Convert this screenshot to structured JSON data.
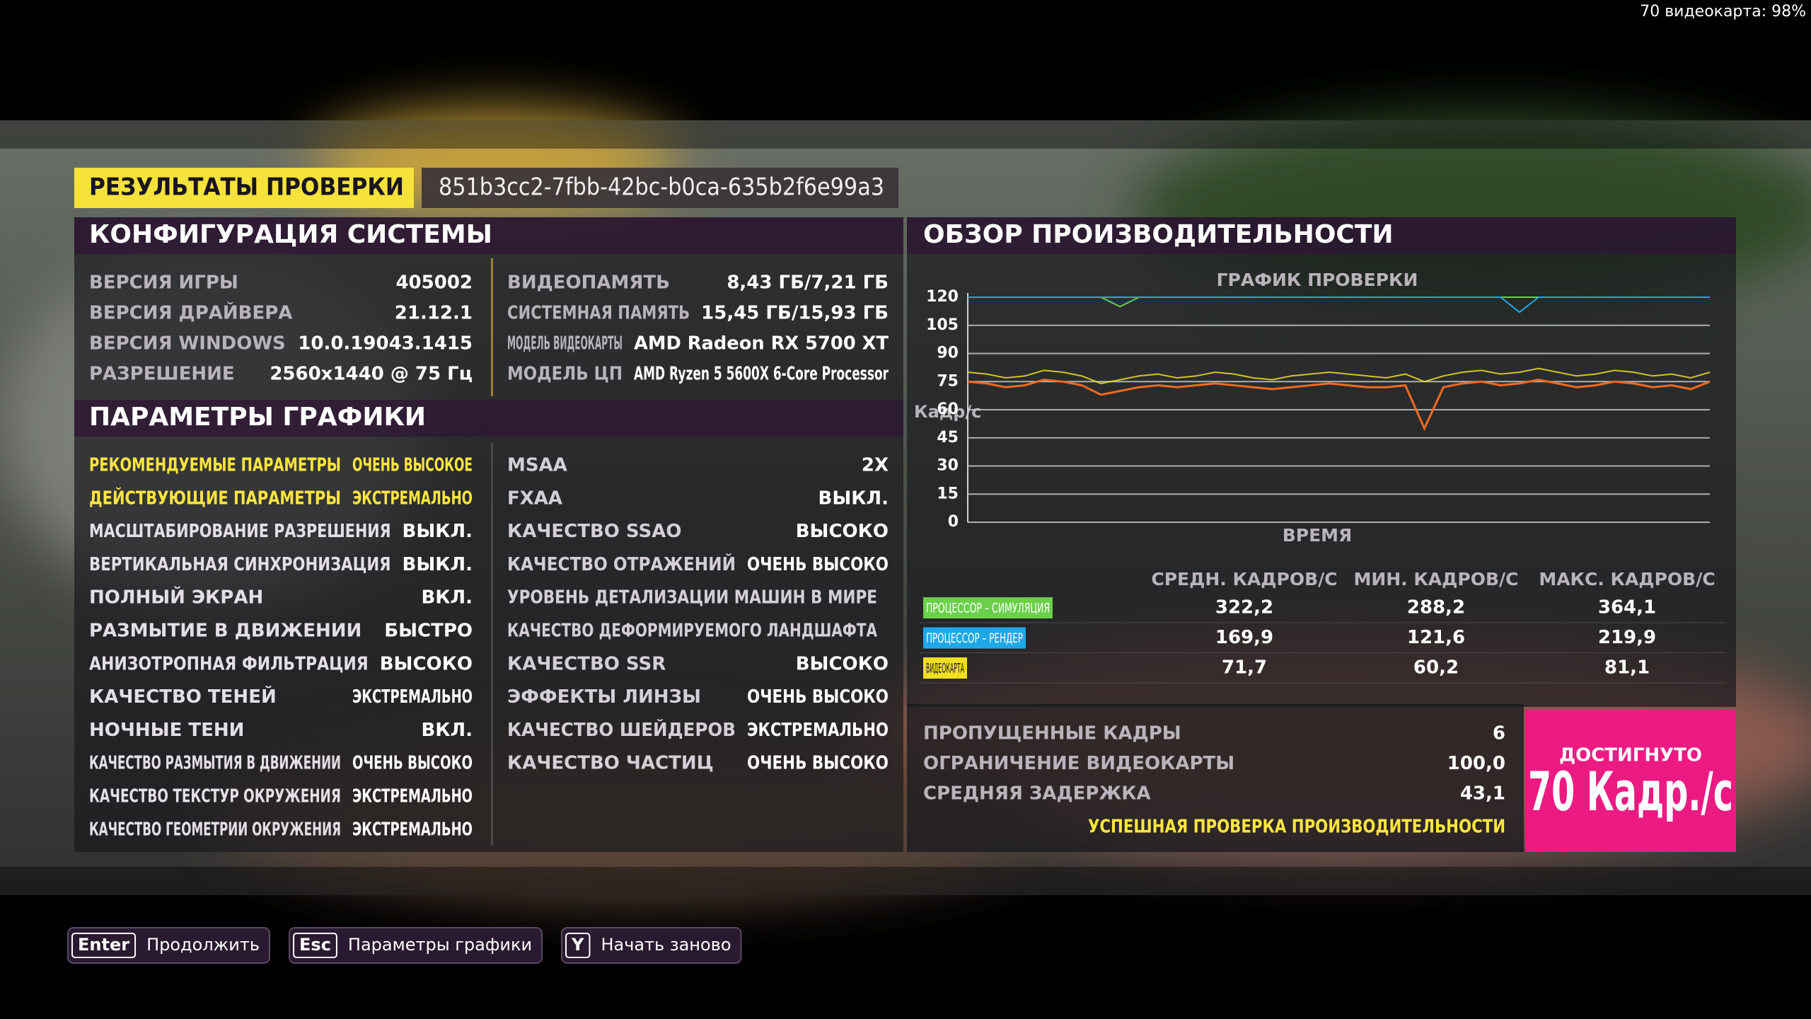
{
  "overlay": "70 видеокарта: 98%",
  "header": {
    "title": "РЕЗУЛЬТАТЫ ПРОВЕРКИ",
    "id": "851b3cc2-7fbb-42bc-b0ca-635b2f6e99a3"
  },
  "system": {
    "title": "КОНФИГУРАЦИЯ СИСТЕМЫ",
    "left": [
      {
        "label": "ВЕРСИЯ ИГРЫ",
        "value": "405002"
      },
      {
        "label": "ВЕРСИЯ ДРАЙВЕРА",
        "value": "21.12.1"
      },
      {
        "label": "ВЕРСИЯ WINDOWS",
        "value": "10.0.19043.1415"
      },
      {
        "label": "РАЗРЕШЕНИЕ",
        "value": "2560x1440 @ 75 Гц"
      }
    ],
    "right": [
      {
        "label": "ВИДЕОПАМЯТЬ",
        "value": "8,43 ГБ/7,21 ГБ"
      },
      {
        "label": "СИСТЕМНАЯ ПАМЯТЬ",
        "value": "15,45 ГБ/15,93 ГБ"
      },
      {
        "label": "МОДЕЛЬ ВИДЕОКАРТЫ",
        "value": "AMD Radeon RX 5700 XT"
      },
      {
        "label": "МОДЕЛЬ ЦП",
        "value": "AMD Ryzen 5 5600X 6-Core Processor"
      }
    ]
  },
  "graphics": {
    "title": "ПАРАМЕТРЫ ГРАФИКИ",
    "left": [
      {
        "label": "РЕКОМЕНДУЕМЫЕ ПАРАМЕТРЫ",
        "value": "ОЧЕНЬ ВЫСОКОЕ",
        "highlight": true
      },
      {
        "label": "ДЕЙСТВУЮЩИЕ ПАРАМЕТРЫ",
        "value": "ЭКСТРЕМАЛЬНО",
        "highlight": true
      },
      {
        "label": "МАСШТАБИРОВАНИЕ РАЗРЕШЕНИЯ",
        "value": "ВЫКЛ."
      },
      {
        "label": "ВЕРТИКАЛЬНАЯ СИНХРОНИЗАЦИЯ",
        "value": "ВЫКЛ."
      },
      {
        "label": "ПОЛНЫЙ ЭКРАН",
        "value": "ВКЛ."
      },
      {
        "label": "РАЗМЫТИЕ В ДВИЖЕНИИ",
        "value": "БЫСТРО"
      },
      {
        "label": "АНИЗОТРОПНАЯ ФИЛЬТРАЦИЯ",
        "value": "ВЫСОКО"
      },
      {
        "label": "КАЧЕСТВО ТЕНЕЙ",
        "value": "ЭКСТРЕМАЛЬНО"
      },
      {
        "label": "НОЧНЫЕ ТЕНИ",
        "value": "ВКЛ."
      },
      {
        "label": "КАЧЕСТВО РАЗМЫТИЯ В ДВИЖЕНИИ",
        "value": "ОЧЕНЬ ВЫСОКО"
      },
      {
        "label": "КАЧЕСТВО ТЕКСТУР ОКРУЖЕНИЯ",
        "value": "ЭКСТРЕМАЛЬНО"
      },
      {
        "label": "КАЧЕСТВО ГЕОМЕТРИИ ОКРУЖЕНИЯ",
        "value": "ЭКСТРЕМАЛЬНО"
      }
    ],
    "right": [
      {
        "label": "MSAA",
        "value": "2X"
      },
      {
        "label": "FXAA",
        "value": "ВЫКЛ."
      },
      {
        "label": "КАЧЕСТВО SSAO",
        "value": "ВЫСОКО"
      },
      {
        "label": "КАЧЕСТВО ОТРАЖЕНИЙ",
        "value": "ОЧЕНЬ ВЫСОКО"
      },
      {
        "label": "УРОВЕНЬ ДЕТАЛИЗАЦИИ МАШИН В МИРЕ"
      },
      {
        "label": "КАЧЕСТВО ДЕФОРМИРУЕМОГО ЛАНДШАФТА"
      },
      {
        "label": "КАЧЕСТВО SSR",
        "value": "ВЫСОКО"
      },
      {
        "label": "ЭФФЕКТЫ ЛИНЗЫ",
        "value": "ОЧЕНЬ ВЫСОКО"
      },
      {
        "label": "КАЧЕСТВО ШЕЙДЕРОВ",
        "value": "ЭКСТРЕМАЛЬНО"
      },
      {
        "label": "КАЧЕСТВО ЧАСТИЦ",
        "value": "ОЧЕНЬ ВЫСОКО"
      }
    ]
  },
  "performance": {
    "title": "ОБЗОР ПРОИЗВОДИТЕЛЬНОСТИ",
    "table": {
      "columns": [
        "СРЕДН. КАДРОВ/С",
        "МИН. КАДРОВ/С",
        "МАКС. КАДРОВ/С"
      ],
      "rows": [
        [
          "322,2",
          "288,2",
          "364,1"
        ],
        [
          "169,9",
          "121,6",
          "219,9"
        ],
        [
          "71,7",
          "60,2",
          "81,1"
        ]
      ]
    },
    "summary": [
      {
        "label": "ПРОПУЩЕННЫЕ КАДРЫ",
        "value": "6"
      },
      {
        "label": "ОГРАНИЧЕНИЕ ВИДЕОКАРТЫ",
        "value": "100,0"
      },
      {
        "label": "СРЕДНЯЯ ЗАДЕРЖКА",
        "value": "43,1"
      }
    ],
    "status": "УСПЕШНАЯ ПРОВЕРКА ПРОИЗВОДИТЕЛЬНОСТИ",
    "result": {
      "label": "ДОСТИГНУТО",
      "value": "70 Кадр./с"
    }
  },
  "chart_data": {
    "type": "line",
    "title": "ГРАФИК ПРОВЕРКИ",
    "x_label": "ВРЕМЯ",
    "y_label": "Кадр/с",
    "ylim": [
      0,
      120
    ],
    "yticks": [
      0,
      15,
      30,
      45,
      60,
      75,
      90,
      105,
      120
    ],
    "grid": true,
    "series": [
      {
        "name": "ПРОЦЕССОР – СИМУЛЯЦИЯ",
        "color": "#6ad04a",
        "values": [
          120,
          120,
          120,
          120,
          120,
          120,
          120,
          120,
          115,
          120,
          120,
          120,
          120,
          120,
          120,
          120,
          120,
          120,
          120,
          120,
          120,
          120,
          120,
          120,
          120,
          120,
          120,
          120,
          120,
          120,
          120,
          120,
          120,
          120,
          120,
          120,
          120,
          120,
          120,
          120
        ]
      },
      {
        "name": "ПРОЦЕССОР – РЕНДЕР",
        "color": "#1fa8e8",
        "values": [
          120,
          120,
          120,
          120,
          120,
          120,
          120,
          120,
          120,
          120,
          120,
          120,
          120,
          120,
          120,
          120,
          120,
          120,
          120,
          120,
          120,
          120,
          120,
          120,
          120,
          120,
          120,
          120,
          120,
          112,
          120,
          120,
          120,
          120,
          120,
          120,
          120,
          120,
          120,
          120
        ]
      },
      {
        "name": "ВИДЕОКАРТА",
        "color": "#f0e020",
        "values": [
          80,
          79,
          77,
          78,
          81,
          80,
          78,
          74,
          76,
          78,
          79,
          77,
          78,
          80,
          79,
          77,
          76,
          78,
          79,
          80,
          79,
          78,
          77,
          79,
          75,
          78,
          80,
          81,
          79,
          80,
          82,
          80,
          78,
          79,
          81,
          80,
          78,
          79,
          77,
          80
        ]
      },
      {
        "color": "#f06a20",
        "values": [
          75,
          74,
          72,
          73,
          76,
          75,
          73,
          68,
          70,
          72,
          73,
          72,
          73,
          74,
          73,
          72,
          71,
          72,
          73,
          74,
          73,
          72,
          72,
          73,
          50,
          72,
          74,
          75,
          73,
          74,
          76,
          74,
          72,
          73,
          75,
          74,
          72,
          73,
          71,
          75
        ]
      }
    ]
  },
  "buttons": [
    {
      "key": "Enter",
      "label": "Продолжить"
    },
    {
      "key": "Esc",
      "label": "Параметры графики"
    },
    {
      "key": "Y",
      "label": "Начать заново"
    }
  ]
}
